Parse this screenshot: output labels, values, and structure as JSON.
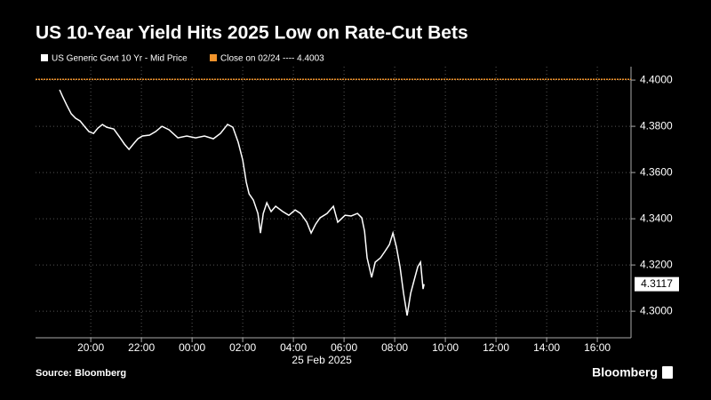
{
  "chart_data": {
    "type": "line",
    "title": "US 10-Year Yield Hits 2025 Low on Rate-Cut Bets",
    "xlabel": "25 Feb 2025",
    "source": "Source: Bloomberg",
    "brand": "Bloomberg",
    "grid": true,
    "x": [
      -5.23,
      -5.12,
      -4.95,
      -4.77,
      -4.6,
      -4.42,
      -4.25,
      -4.07,
      -3.89,
      -3.72,
      -3.54,
      -3.37,
      -3.09,
      -2.84,
      -2.67,
      -2.49,
      -2.32,
      -2.14,
      -1.96,
      -1.68,
      -1.44,
      -1.19,
      -0.91,
      -0.56,
      -0.21,
      0.14,
      0.49,
      0.84,
      1.12,
      1.4,
      1.61,
      1.82,
      2.0,
      2.14,
      2.25,
      2.42,
      2.6,
      2.7,
      2.81,
      2.95,
      3.12,
      3.3,
      3.58,
      3.82,
      4.07,
      4.28,
      4.53,
      4.7,
      4.88,
      5.05,
      5.33,
      5.58,
      5.75,
      6.04,
      6.28,
      6.53,
      6.7,
      6.81,
      6.91,
      7.09,
      7.23,
      7.44,
      7.61,
      7.79,
      7.93,
      8.07,
      8.21,
      8.35,
      8.49,
      8.63,
      8.77,
      8.91,
      9.02,
      9.12,
      9.16
    ],
    "series": [
      {
        "name": "US Generic Govt 10 Yr - Mid Price",
        "color": "#ffffff",
        "values": [
          4.3958,
          4.3931,
          4.3892,
          4.3854,
          4.3835,
          4.3823,
          4.38,
          4.3777,
          4.3769,
          4.3792,
          4.3808,
          4.3796,
          4.3788,
          4.375,
          4.3723,
          4.37,
          4.3723,
          4.3746,
          4.3758,
          4.3762,
          4.3777,
          4.38,
          4.3785,
          4.375,
          4.3758,
          4.375,
          4.3758,
          4.3746,
          4.3769,
          4.3808,
          4.3796,
          4.3731,
          4.3654,
          4.3558,
          4.3508,
          4.3481,
          4.3423,
          4.3338,
          4.3423,
          4.3469,
          4.3431,
          4.3454,
          4.3431,
          4.3415,
          4.3438,
          4.3423,
          4.3385,
          4.3338,
          4.3377,
          4.3404,
          4.3423,
          4.3454,
          4.3385,
          4.3415,
          4.3412,
          4.3423,
          4.3404,
          4.3346,
          4.3231,
          4.3146,
          4.3212,
          4.3231,
          4.3258,
          4.3288,
          4.3338,
          4.3277,
          4.3192,
          4.3077,
          4.2981,
          4.3077,
          4.3135,
          4.3192,
          4.3212,
          4.3096,
          4.3117
        ]
      }
    ],
    "last_value": {
      "value": 4.3117,
      "label": "4.3117"
    },
    "reference_line": {
      "name": "Close on 02/24 ---- 4.4003",
      "value": 4.4003,
      "color": "#f0932b"
    },
    "xlim": [
      -6.18,
      17.33
    ],
    "xticks": [
      {
        "value": -4,
        "label": "20:00"
      },
      {
        "value": -2,
        "label": "22:00"
      },
      {
        "value": 0,
        "label": "00:00"
      },
      {
        "value": 2,
        "label": "02:00"
      },
      {
        "value": 4,
        "label": "04:00"
      },
      {
        "value": 6,
        "label": "06:00"
      },
      {
        "value": 8,
        "label": "08:00"
      },
      {
        "value": 10,
        "label": "10:00"
      },
      {
        "value": 12,
        "label": "12:00"
      },
      {
        "value": 14,
        "label": "14:00"
      },
      {
        "value": 16,
        "label": "16:00"
      }
    ],
    "ylim": [
      4.2885,
      4.4058
    ],
    "yticks": [
      {
        "value": 4.3,
        "label": "4.3000"
      },
      {
        "value": 4.32,
        "label": "4.3200"
      },
      {
        "value": 4.34,
        "label": "4.3400"
      },
      {
        "value": 4.36,
        "label": "4.3600"
      },
      {
        "value": 4.38,
        "label": "4.3800"
      },
      {
        "value": 4.4,
        "label": "4.4000"
      }
    ]
  }
}
